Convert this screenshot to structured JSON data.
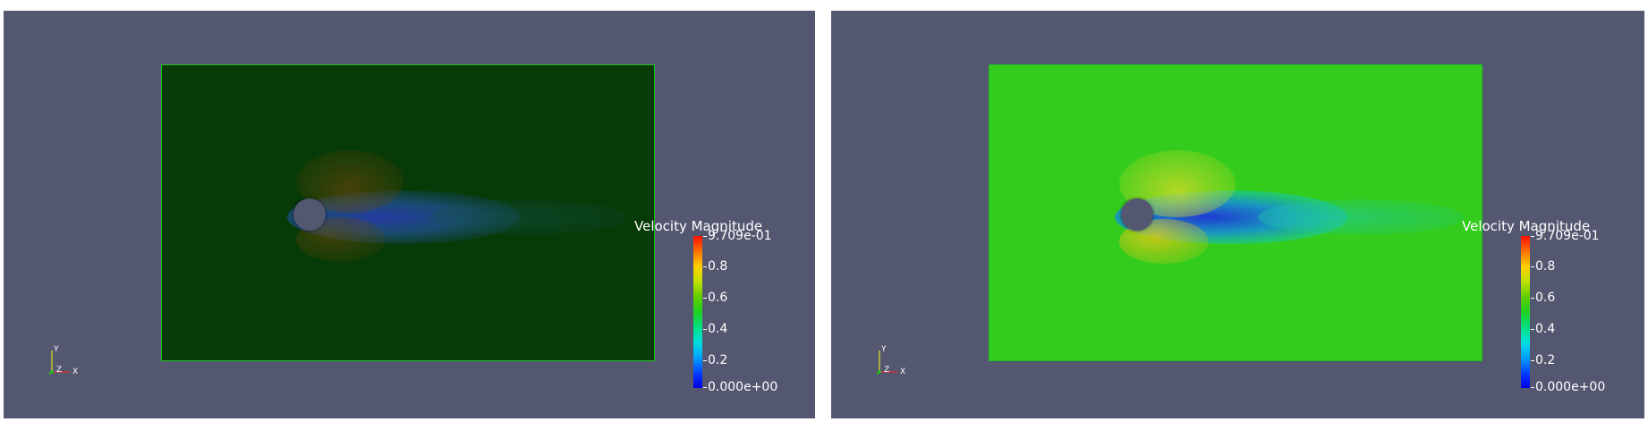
{
  "left_view": {
    "legend": {
      "title": "Velocity Magnitude",
      "max_label": "9.709e-01",
      "ticks": [
        "0.8",
        "0.6",
        "0.4",
        "0.2"
      ],
      "min_label": "0.000e+00"
    },
    "axes": {
      "x": "X",
      "y": "Y",
      "z": "Z"
    }
  },
  "right_view": {
    "legend": {
      "title": "Velocity Magnitude",
      "max_label": "9.709e-01",
      "ticks": [
        "0.8",
        "0.6",
        "0.4",
        "0.2"
      ],
      "min_label": "0.000e+00"
    },
    "axes": {
      "x": "X",
      "y": "Y",
      "z": "Z"
    }
  },
  "colors": {
    "background": "#545770",
    "left_field": "#063a06",
    "right_field": "#33cc1c",
    "field_border": "#20c020"
  }
}
